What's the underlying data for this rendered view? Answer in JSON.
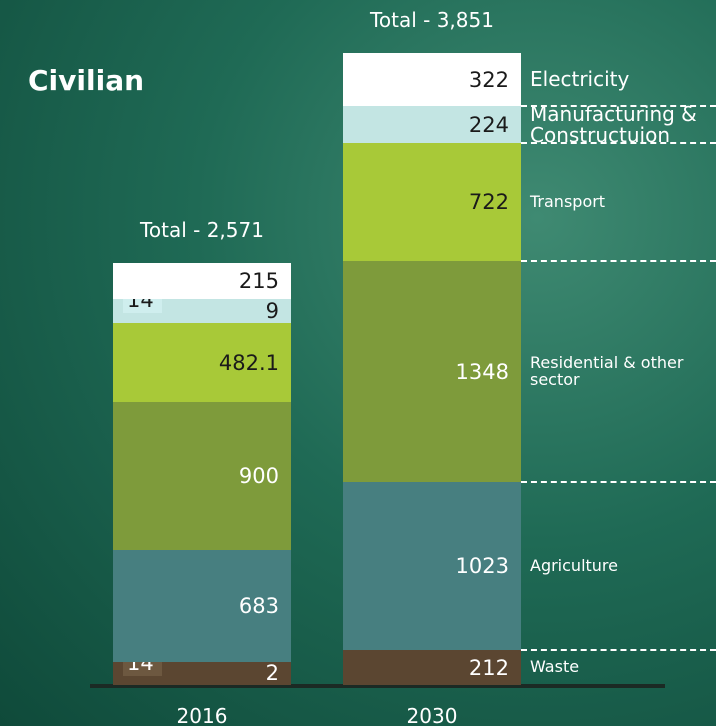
{
  "chart_data": {
    "type": "stacked-bar",
    "title": "Civilian",
    "categories": [
      "2016",
      "2030"
    ],
    "totals": [
      "Total - 2,571",
      "Total - 3,851"
    ],
    "series": [
      {
        "name": "Waste",
        "color": "#5b4631",
        "values": [
          142,
          212
        ],
        "value_labels": [
          [
            "14",
            "2"
          ],
          "212"
        ]
      },
      {
        "name": "Agriculture",
        "color": "#477f80",
        "values": [
          683,
          1023
        ]
      },
      {
        "name": "Residential & other sector",
        "color": "#7e9b3b",
        "values": [
          900,
          1348
        ]
      },
      {
        "name": "Transport",
        "color": "#a8c938",
        "values": [
          482.1,
          722
        ]
      },
      {
        "name": "Manufacturing & Constructuion",
        "color": "#c3e5e3",
        "values": [
          149,
          224
        ],
        "value_labels": [
          [
            "14",
            "9"
          ],
          "224"
        ]
      },
      {
        "name": "Electricity",
        "color": "#ffffff",
        "values": [
          215,
          322
        ]
      }
    ]
  }
}
